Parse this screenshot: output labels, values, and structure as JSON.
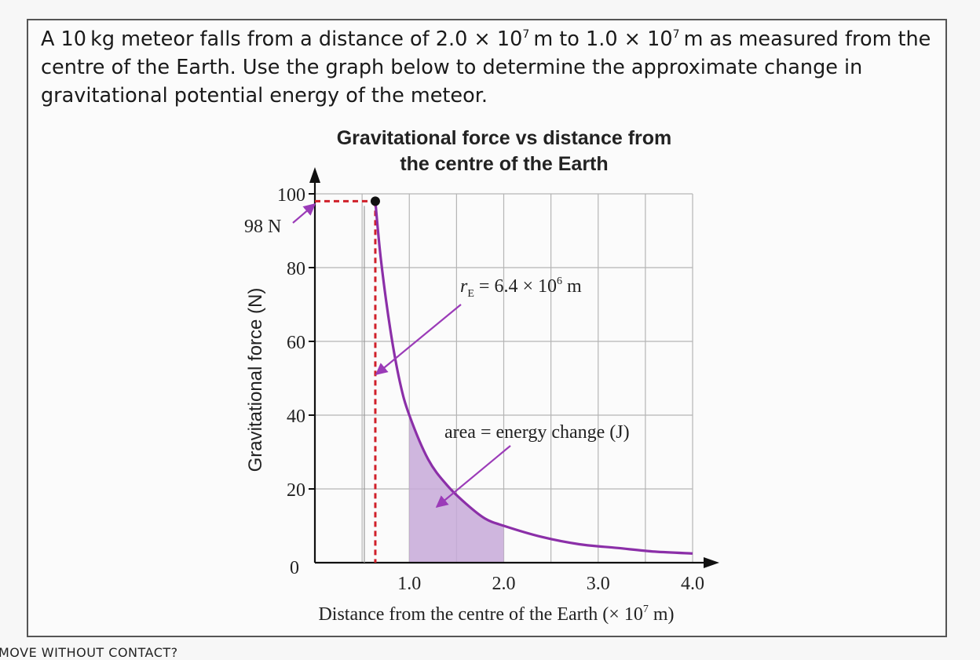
{
  "question": {
    "part1": "A 10 kg meteor falls from a distance of 2.0 × 10",
    "exp1": "7",
    "part2": " m to 1.0 × 10",
    "exp2": "7",
    "part3": " m as measured from the centre of the Earth. Use the graph below to determine the approximate change in gravitational potential energy of the meteor."
  },
  "bottom_cut_text": "MOVE WITHOUT CONTACT?",
  "colors": {
    "curve": "#8b2fa8",
    "area_fill": "#c7a9d8",
    "dashed_line": "#d0202a",
    "arrow": "#9b3bb8",
    "grid": "#b5b5b5",
    "axis": "#111111"
  },
  "chart_data": {
    "type": "line",
    "title_line1": "Gravitational force vs distance from",
    "title_line2": "the centre of the Earth",
    "xlabel_main": "Distance from the centre of the Earth (× 10",
    "xlabel_exp": "7",
    "xlabel_end": " m)",
    "ylabel": "Gravitational force (N)",
    "xlim": [
      0,
      4.0
    ],
    "ylim": [
      0,
      100
    ],
    "grid": true,
    "x_ticks": [
      {
        "v": 1.0,
        "label": "1.0"
      },
      {
        "v": 2.0,
        "label": "2.0"
      },
      {
        "v": 3.0,
        "label": "3.0"
      },
      {
        "v": 4.0,
        "label": "4.0"
      }
    ],
    "y_ticks": [
      {
        "v": 0,
        "label": "0"
      },
      {
        "v": 20,
        "label": "20"
      },
      {
        "v": 40,
        "label": "40"
      },
      {
        "v": 60,
        "label": "60"
      },
      {
        "v": 80,
        "label": "80"
      },
      {
        "v": 100,
        "label": "100"
      }
    ],
    "series": [
      {
        "x": [
          0.64,
          0.7,
          0.8,
          0.9,
          1.0,
          1.2,
          1.4,
          1.6,
          1.8,
          2.0,
          2.4,
          2.8,
          3.2,
          3.6,
          4.0
        ],
        "y": [
          98,
          82,
          63,
          49,
          40,
          28,
          21,
          16,
          12,
          10,
          7,
          5,
          4,
          3,
          2.5
        ]
      }
    ],
    "shaded_region": {
      "x_from": 1.0,
      "x_to": 2.0
    },
    "marker_point": {
      "x": 0.64,
      "y": 98
    },
    "annotations": {
      "force_at_surface": "98 N",
      "earth_radius_italic": "r",
      "earth_radius_sub": "E",
      "earth_radius_rest": " = 6.4 × 10",
      "earth_radius_exp": "6",
      "earth_radius_unit": " m",
      "area_label": "area = energy change (J)"
    }
  }
}
